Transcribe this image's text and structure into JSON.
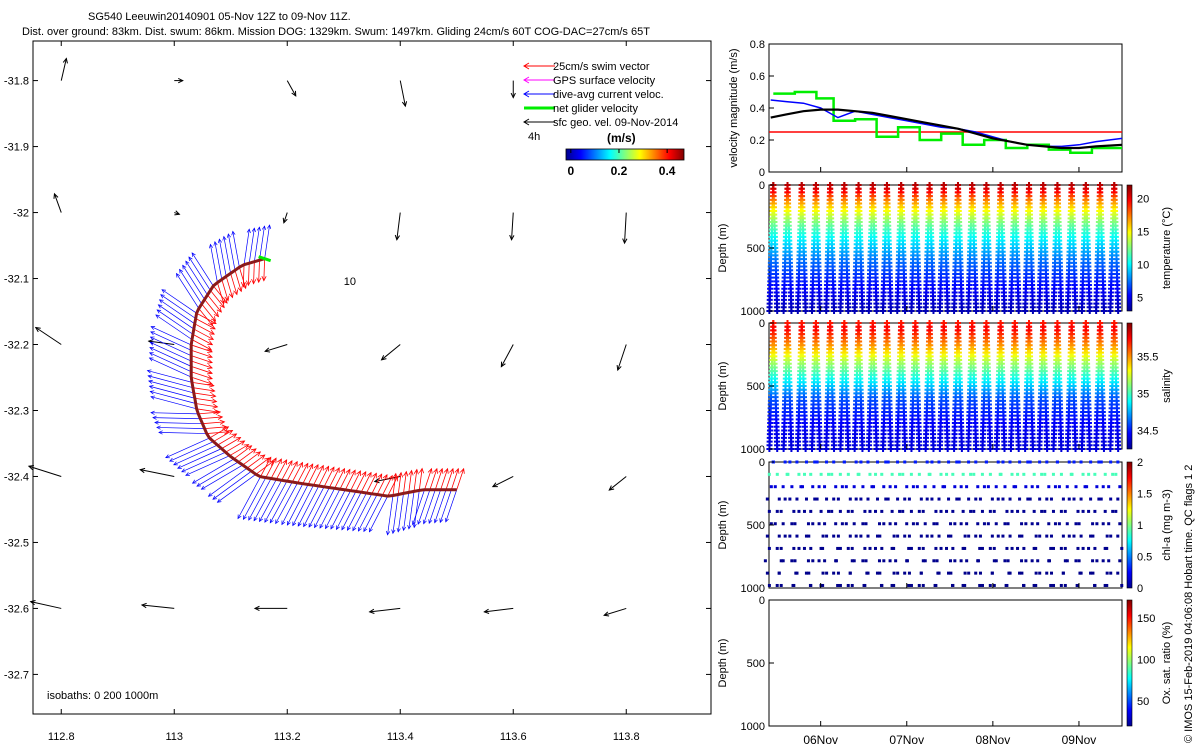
{
  "header": {
    "line1": "SG540 Leeuwin20140901 05-Nov 12Z to 09-Nov 11Z.",
    "line2": "Dist. over ground: 83km. Dist. swum: 86km. Mission DOG: 1329km. Swum: 1497km. Gliding 24cm/s 60T COG-DAC=27cm/s 65T"
  },
  "side_note": "© IMOS 15-Feb-2019 04:06:08 Hobart time. QC flags 1  2",
  "colors": {
    "swim": "#ff0000",
    "gps": "#ff00ff",
    "dac": "#0000ff",
    "net": "#00ee00",
    "geo": "#000000"
  },
  "chart_data": [
    {
      "type": "map-vectors",
      "xlim": [
        112.75,
        113.95
      ],
      "ylim": [
        -32.76,
        -31.74
      ],
      "xticks": [
        112.8,
        113,
        113.2,
        113.4,
        113.6,
        113.8
      ],
      "xtick_labels": [
        "112.8",
        "113",
        "113.2",
        "113.4",
        "113.6",
        "113.8"
      ],
      "yticks": [
        -31.8,
        -31.9,
        -32,
        -32.1,
        -32.2,
        -32.3,
        -32.4,
        -32.5,
        -32.6,
        -32.7
      ],
      "ytick_labels": [
        "-31.8",
        "-31.9",
        "-32",
        "-32.1",
        "-32.2",
        "-32.3",
        "-32.4",
        "-32.5",
        "-32.6",
        "-32.7"
      ],
      "legend": {
        "placement": "top-right",
        "entries": [
          "25cm/s swim vector",
          "GPS surface velocity",
          "dive-avg current veloc.",
          "net glider velocity",
          "sfc geo. vel. 09-Nov-2014"
        ],
        "interval_label": "4h"
      },
      "colorbar": {
        "title": "(m/s)",
        "ticks": [
          0,
          0.2,
          0.4
        ],
        "tick_labels": [
          "0",
          "0.2",
          "0.4"
        ],
        "range": [
          -0.02,
          0.47
        ]
      },
      "annotations": [
        {
          "text": "10",
          "lon": 113.3,
          "lat": -32.11
        }
      ],
      "isobaths_label": "isobaths: 0   200  1000m",
      "track": {
        "lon": [
          113.16,
          113.12,
          113.07,
          113.04,
          113.03,
          113.03,
          113.04,
          113.06,
          113.1,
          113.15,
          113.22,
          113.3,
          113.38,
          113.44,
          113.5
        ],
        "lat": [
          -32.07,
          -32.08,
          -32.11,
          -32.15,
          -32.2,
          -32.25,
          -32.3,
          -32.34,
          -32.37,
          -32.4,
          -32.41,
          -32.42,
          -32.43,
          -32.42,
          -32.42
        ]
      },
      "geo_vectors": [
        {
          "lon": 112.8,
          "lat": -31.8,
          "u": 0.03,
          "v": 0.13
        },
        {
          "lon": 113.0,
          "lat": -31.8,
          "u": 0.05,
          "v": 0.0
        },
        {
          "lon": 113.2,
          "lat": -31.8,
          "u": 0.05,
          "v": -0.09
        },
        {
          "lon": 113.4,
          "lat": -31.8,
          "u": 0.03,
          "v": -0.15
        },
        {
          "lon": 113.6,
          "lat": -31.8,
          "u": 0.0,
          "v": -0.1
        },
        {
          "lon": 112.8,
          "lat": -32.0,
          "u": -0.04,
          "v": 0.11
        },
        {
          "lon": 113.0,
          "lat": -32.0,
          "u": 0.03,
          "v": -0.01
        },
        {
          "lon": 113.2,
          "lat": -32.0,
          "u": -0.02,
          "v": -0.06
        },
        {
          "lon": 113.4,
          "lat": -32.0,
          "u": -0.02,
          "v": -0.16
        },
        {
          "lon": 113.6,
          "lat": -32.0,
          "u": -0.01,
          "v": -0.16
        },
        {
          "lon": 113.8,
          "lat": -32.0,
          "u": -0.01,
          "v": -0.18
        },
        {
          "lon": 112.8,
          "lat": -32.2,
          "u": -0.15,
          "v": 0.1
        },
        {
          "lon": 113.0,
          "lat": -32.2,
          "u": -0.15,
          "v": 0.02
        },
        {
          "lon": 113.2,
          "lat": -32.2,
          "u": -0.13,
          "v": -0.04
        },
        {
          "lon": 113.4,
          "lat": -32.2,
          "u": -0.11,
          "v": -0.09
        },
        {
          "lon": 113.6,
          "lat": -32.2,
          "u": -0.07,
          "v": -0.13
        },
        {
          "lon": 113.8,
          "lat": -32.2,
          "u": -0.05,
          "v": -0.15
        },
        {
          "lon": 112.8,
          "lat": -32.4,
          "u": -0.19,
          "v": 0.06
        },
        {
          "lon": 113.0,
          "lat": -32.4,
          "u": -0.2,
          "v": 0.04
        },
        {
          "lon": 113.4,
          "lat": -32.4,
          "u": -0.15,
          "v": -0.03
        },
        {
          "lon": 113.6,
          "lat": -32.4,
          "u": -0.12,
          "v": -0.06
        },
        {
          "lon": 113.8,
          "lat": -32.4,
          "u": -0.1,
          "v": -0.08
        },
        {
          "lon": 112.8,
          "lat": -32.6,
          "u": -0.18,
          "v": 0.04
        },
        {
          "lon": 113.0,
          "lat": -32.6,
          "u": -0.19,
          "v": 0.02
        },
        {
          "lon": 113.2,
          "lat": -32.6,
          "u": -0.19,
          "v": 0.0
        },
        {
          "lon": 113.4,
          "lat": -32.6,
          "u": -0.18,
          "v": -0.02
        },
        {
          "lon": 113.6,
          "lat": -32.6,
          "u": -0.17,
          "v": -0.02
        },
        {
          "lon": 113.8,
          "lat": -32.6,
          "u": -0.13,
          "v": -0.04
        }
      ]
    },
    {
      "type": "line",
      "ylabel": "velocity magnitude (m/s)",
      "ylim": [
        0,
        0.8
      ],
      "yticks": [
        0,
        0.2,
        0.4,
        0.6,
        0.8
      ],
      "xlim": [
        5.4,
        9.5
      ],
      "xticks": [
        6,
        7,
        8,
        9
      ],
      "xtick_labels": [
        "06Nov",
        "07Nov",
        "08Nov",
        "09Nov"
      ],
      "series": [
        {
          "color": "#ff0000",
          "x": [
            5.4,
            9.5
          ],
          "y": [
            0.25,
            0.25
          ]
        },
        {
          "color": "#00ee00",
          "step": true,
          "x": [
            5.45,
            5.7,
            5.95,
            6.15,
            6.4,
            6.65,
            6.9,
            7.15,
            7.4,
            7.65,
            7.9,
            8.15,
            8.4,
            8.65,
            8.9,
            9.15,
            9.5
          ],
          "y": [
            0.49,
            0.5,
            0.46,
            0.32,
            0.33,
            0.22,
            0.28,
            0.2,
            0.24,
            0.17,
            0.2,
            0.15,
            0.17,
            0.14,
            0.12,
            0.15,
            0.14
          ]
        },
        {
          "color": "#0000ff",
          "x": [
            5.42,
            5.6,
            5.8,
            6.0,
            6.2,
            6.4,
            6.6,
            6.8,
            7.0,
            7.2,
            7.4,
            7.6,
            7.8,
            8.0,
            8.2,
            8.4,
            8.6,
            8.8,
            9.0,
            9.2,
            9.5
          ],
          "y": [
            0.45,
            0.44,
            0.43,
            0.4,
            0.34,
            0.38,
            0.36,
            0.34,
            0.32,
            0.3,
            0.28,
            0.27,
            0.25,
            0.22,
            0.19,
            0.17,
            0.16,
            0.16,
            0.17,
            0.19,
            0.21
          ]
        },
        {
          "color": "#000000",
          "x": [
            5.42,
            5.6,
            5.8,
            6.0,
            6.2,
            6.4,
            6.6,
            6.8,
            7.0,
            7.2,
            7.4,
            7.6,
            7.8,
            8.0,
            8.2,
            8.4,
            8.6,
            8.8,
            9.0,
            9.2,
            9.5
          ],
          "y": [
            0.34,
            0.36,
            0.38,
            0.39,
            0.39,
            0.38,
            0.37,
            0.35,
            0.33,
            0.31,
            0.29,
            0.27,
            0.24,
            0.21,
            0.19,
            0.17,
            0.16,
            0.15,
            0.15,
            0.16,
            0.17
          ]
        }
      ]
    },
    {
      "type": "scatter",
      "ylabel": "Depth (m)",
      "clabel": "temperature (°C)",
      "ylim": [
        1000,
        0
      ],
      "yticks": [
        0,
        500,
        1000
      ],
      "xlim": [
        5.4,
        9.5
      ],
      "clim": [
        3,
        22
      ],
      "cticks": [
        5,
        10,
        15,
        20
      ],
      "dives": {
        "start": 5.45,
        "step": 0.165,
        "count": 25,
        "max_depth": 1000
      },
      "profile": {
        "depth": [
          0,
          50,
          100,
          150,
          200,
          300,
          400,
          500,
          600,
          800,
          1000
        ],
        "value": [
          21,
          20,
          18,
          16.5,
          15,
          12.5,
          10.5,
          9,
          7.5,
          5.5,
          4
        ]
      }
    },
    {
      "type": "scatter",
      "ylabel": "Depth (m)",
      "clabel": "salinity",
      "ylim": [
        1000,
        0
      ],
      "yticks": [
        0,
        500,
        1000
      ],
      "xlim": [
        5.4,
        9.5
      ],
      "clim": [
        34.25,
        35.95
      ],
      "cticks": [
        34.5,
        35,
        35.5
      ],
      "dives": {
        "start": 5.45,
        "step": 0.165,
        "count": 25,
        "max_depth": 1000
      },
      "profile": {
        "depth": [
          0,
          50,
          100,
          150,
          200,
          300,
          400,
          500,
          600,
          800,
          1000
        ],
        "value": [
          35.7,
          35.75,
          35.65,
          35.55,
          35.45,
          35.2,
          35.0,
          34.8,
          34.6,
          34.45,
          34.4
        ]
      }
    },
    {
      "type": "scatter",
      "ylabel": "Depth (m)",
      "clabel": "chl-a (mg m-3)",
      "ylim": [
        1000,
        0
      ],
      "yticks": [
        0,
        500,
        1000
      ],
      "xlim": [
        5.4,
        9.5
      ],
      "clim": [
        0,
        2
      ],
      "cticks": [
        0,
        0.5,
        1,
        1.5,
        2
      ],
      "cticklabels": [
        "0",
        "0.5",
        "1",
        "1.5",
        "2"
      ],
      "dives": {
        "start": 5.45,
        "step": 0.165,
        "count": 25,
        "max_depth": 1000
      },
      "profile": {
        "depth": [
          0,
          50,
          100,
          150,
          200,
          300,
          1000
        ],
        "value": [
          0.3,
          0.6,
          0.9,
          0.5,
          0.15,
          0.04,
          0.02
        ]
      }
    },
    {
      "type": "scatter",
      "ylabel": "Depth (m)",
      "clabel": "Ox. sat. ratio (%)",
      "ylim": [
        1000,
        0
      ],
      "yticks": [
        0,
        500,
        1000
      ],
      "xlim": [
        5.4,
        9.5
      ],
      "clim": [
        20,
        172
      ],
      "cticks": [
        50,
        100,
        150
      ],
      "xticks": [
        6,
        7,
        8,
        9
      ],
      "xtick_labels": [
        "06Nov",
        "07Nov",
        "08Nov",
        "09Nov"
      ]
    }
  ]
}
